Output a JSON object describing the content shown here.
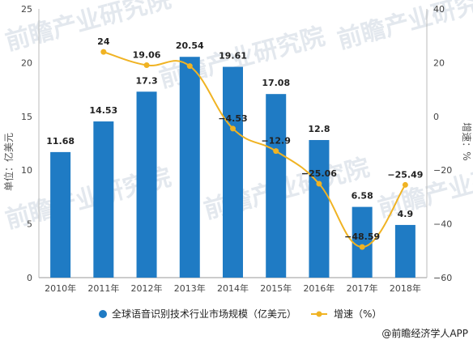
{
  "chart_data": {
    "type": "bar",
    "categories": [
      "2010年",
      "2011年",
      "2012年",
      "2013年",
      "2014年",
      "2015年",
      "2016年",
      "2017年",
      "2018年"
    ],
    "series": [
      {
        "name": "全球语音识别技术行业市场规模（亿美元）",
        "type": "bar",
        "axis": "left",
        "values": [
          11.68,
          14.53,
          17.3,
          20.54,
          19.61,
          17.08,
          12.8,
          6.58,
          4.9
        ]
      },
      {
        "name": "增速（%）",
        "type": "line",
        "axis": "right",
        "values": [
          null,
          24,
          19.06,
          18.73,
          -4.53,
          -12.9,
          -25.06,
          -48.59,
          -25.49
        ],
        "labels": [
          "",
          "24",
          "19.06",
          "",
          "−4.53",
          "−12.9",
          "−25.06",
          "−48.59",
          "−25.49"
        ]
      }
    ],
    "ylabel": "单位：亿美元",
    "y2label": "增速：%",
    "ylim": [
      0,
      25
    ],
    "yticks": [
      "0",
      "5",
      "10",
      "15",
      "20",
      "25"
    ],
    "y2lim": [
      -60,
      40
    ],
    "y2ticks": [
      "−60",
      "−40",
      "−20",
      "0",
      "20",
      "40"
    ],
    "grid": false,
    "legend_position": "bottom",
    "colors": {
      "bar": "#1f7bc4",
      "line": "#f0b323"
    }
  },
  "source": "@前瞻经济学人APP",
  "watermark": "前瞻产业研究院"
}
